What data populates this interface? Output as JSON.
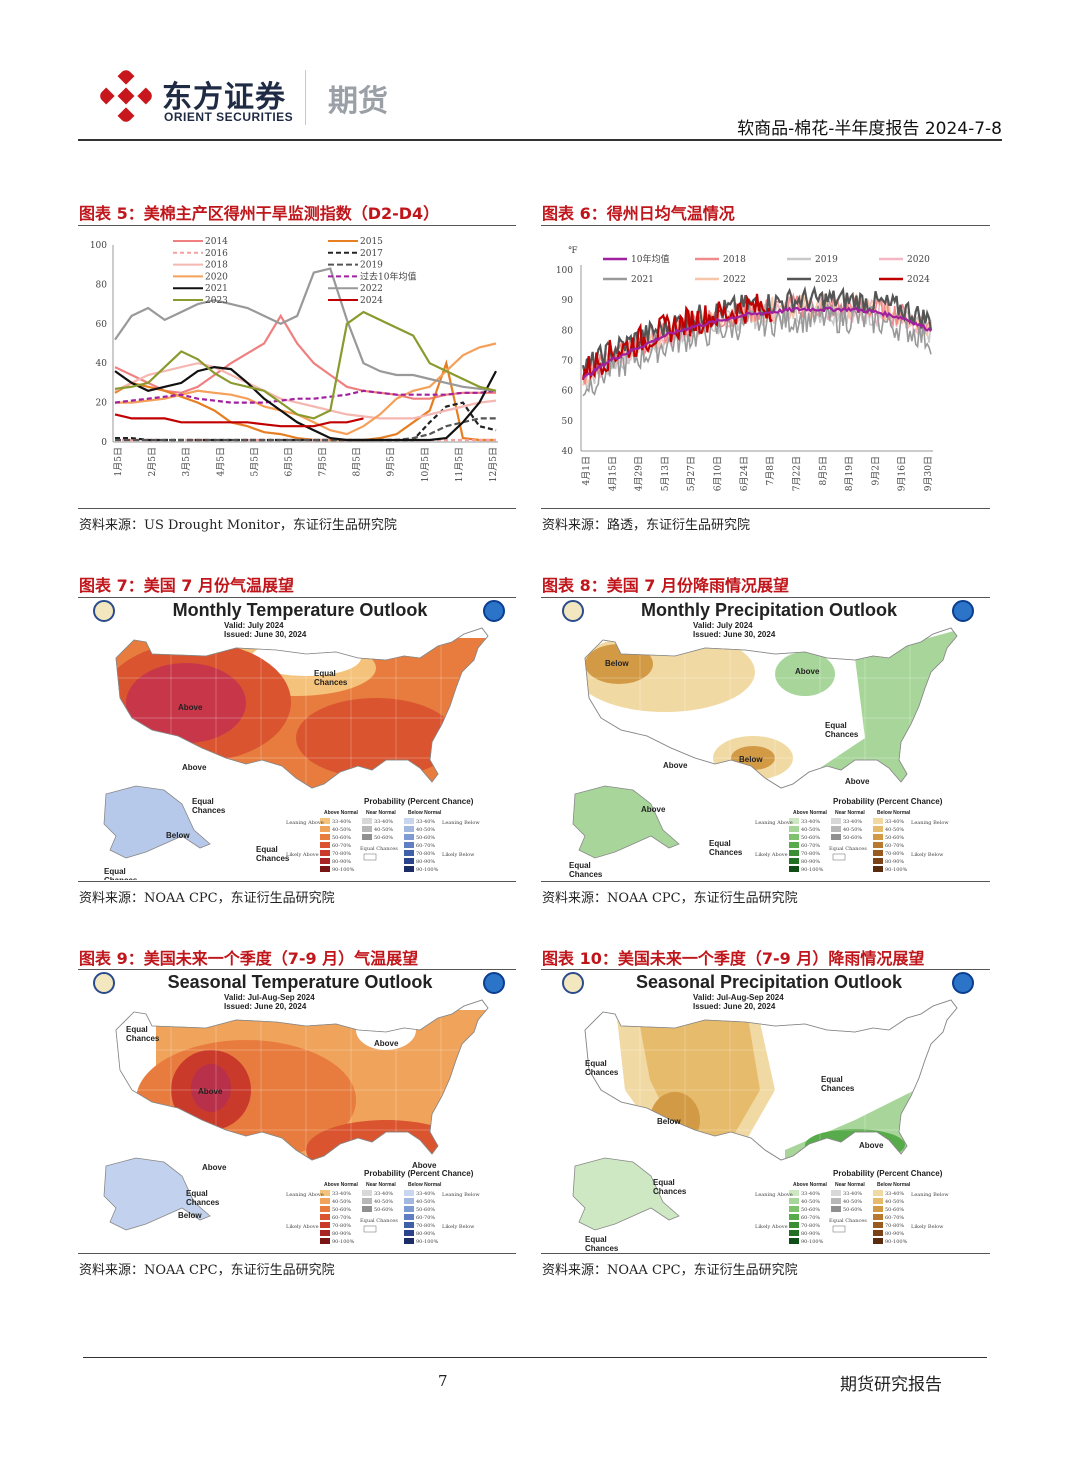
{
  "header": {
    "company_cn": "东方证券",
    "company_en": "ORIENT SECURITIES",
    "division": "期货",
    "report_info": "软商品-棉花-半年度报告 2024-7-8"
  },
  "figures": {
    "fig5": {
      "title": "图表 5：美棉主产区得州干旱监测指数（D2-D4）",
      "source": "资料来源：US Drought Monitor，东证衍生品研究院"
    },
    "fig6": {
      "title": "图表 6：得州日均气温情况",
      "source": "资料来源：路透，东证衍生品研究院"
    },
    "fig7": {
      "title": "图表 7：美国 7 月份气温展望",
      "source": "资料来源：NOAA CPC，东证衍生品研究院",
      "map_title": "Monthly Temperature Outlook",
      "valid": "Valid:  July 2024",
      "issued": "Issued:  June 30, 2024",
      "labels": [
        "Above",
        "Equal Chances",
        "Above",
        "Equal Chances",
        "Below",
        "Equal Chances",
        "Equal Chances"
      ]
    },
    "fig8": {
      "title": "图表 8：美国 7 月份降雨情况展望",
      "source": "资料来源：NOAA CPC，东证衍生品研究院",
      "map_title": "Monthly Precipitation Outlook",
      "valid": "Valid:  July 2024",
      "issued": "Issued:  June 30, 2024",
      "labels": [
        "Below",
        "Above",
        "Equal Chances",
        "Below",
        "Above",
        "Above",
        "Above",
        "Equal Chances",
        "Equal Chances"
      ]
    },
    "fig9": {
      "title": "图表 9：美国未来一个季度（7-9 月）气温展望",
      "source": "资料来源：NOAA CPC，东证衍生品研究院",
      "map_title": "Seasonal Temperature Outlook",
      "valid": "Valid:  Jul-Aug-Sep 2024",
      "issued": "Issued:  June 20, 2024",
      "labels": [
        "Equal Chances",
        "Above",
        "Above",
        "Above",
        "Above",
        "Equal Chances",
        "Below"
      ]
    },
    "fig10": {
      "title": "图表 10：美国未来一个季度（7-9 月）降雨情况展望",
      "source": "资料来源：NOAA CPC，东证衍生品研究院",
      "map_title": "Seasonal Precipitation Outlook",
      "valid": "Valid:  Jul-Aug-Sep 2024",
      "issued": "Issued:  June 20, 2024",
      "labels": [
        "Equal Chances",
        "Below",
        "Equal Chances",
        "Above",
        "Equal Chances",
        "Equal Chances"
      ]
    }
  },
  "map_legend": {
    "probability": "Probability (Percent Chance)",
    "leaning_above": "Leaning Above",
    "likely_above": "Likely Above",
    "leaning_below": "Leaning Below",
    "likely_below": "Likely Below",
    "above_normal": "Above Normal",
    "near_normal": "Near Normal",
    "below_normal": "Below Normal",
    "equal_chances": "Equal Chances",
    "bins": [
      "33-40%",
      "40-50%",
      "50-60%",
      "60-70%",
      "70-80%",
      "80-90%",
      "90-100%"
    ],
    "temp_above_colors": [
      "#f4c27a",
      "#f0a35a",
      "#e77c3e",
      "#d9542f",
      "#c93a2b",
      "#a82424",
      "#7a1515"
    ],
    "temp_below_colors": [
      "#c8d6ef",
      "#a2b8e0",
      "#7f9bd3",
      "#5f7fc2",
      "#3f5fa8",
      "#2a438a",
      "#1b2c66"
    ],
    "precip_above_colors": [
      "#cfe8c4",
      "#a8d69a",
      "#7fc26e",
      "#58ab4a",
      "#3a8e33",
      "#227024",
      "#0f4f17"
    ],
    "precip_below_colors": [
      "#f1d9a3",
      "#e6bb6c",
      "#d39a46",
      "#b8782d",
      "#985a1e",
      "#7a4216",
      "#5a2c0f"
    ]
  },
  "chart_data": [
    {
      "type": "line",
      "title": "图表 5：美棉主产区得州干旱监测指数（D2-D4）",
      "ylim": [
        0,
        100
      ],
      "yticks": [
        0,
        20,
        40,
        60,
        80,
        100
      ],
      "x_labels": [
        "1月5日",
        "2月5日",
        "3月5日",
        "4月5日",
        "5月5日",
        "6月5日",
        "7月5日",
        "8月5日",
        "9月5日",
        "10月5日",
        "11月5日",
        "12月5日"
      ],
      "legend": "top",
      "series": [
        {
          "name": "2014",
          "color": "#f08080",
          "dash": "",
          "values": [
            38,
            34,
            30,
            26,
            25,
            28,
            34,
            40,
            45,
            50,
            64,
            50,
            40,
            34,
            28,
            26,
            25,
            24,
            22,
            22,
            24,
            25,
            25,
            25
          ]
        },
        {
          "name": "2015",
          "color": "#e67e22",
          "dash": "",
          "values": [
            25,
            30,
            28,
            26,
            23,
            20,
            16,
            10,
            8,
            5,
            4,
            2,
            1,
            1,
            1,
            1,
            2,
            4,
            10,
            16,
            40,
            2,
            1,
            1
          ]
        },
        {
          "name": "2016",
          "color": "#f5a0a0",
          "dash": "4,3",
          "values": [
            1,
            1,
            1,
            1,
            1,
            1,
            1,
            1,
            1,
            1,
            1,
            1,
            1,
            1,
            1,
            1,
            1,
            1,
            1,
            1,
            1,
            1,
            1,
            1
          ]
        },
        {
          "name": "2017",
          "color": "#222222",
          "dash": "5,3",
          "values": [
            2,
            2,
            1,
            1,
            1,
            1,
            1,
            1,
            1,
            1,
            1,
            1,
            1,
            1,
            1,
            1,
            1,
            1,
            1,
            10,
            18,
            20,
            8,
            6
          ]
        },
        {
          "name": "2018",
          "color": "#f5b7b1",
          "dash": "",
          "values": [
            26,
            30,
            34,
            36,
            38,
            40,
            38,
            34,
            30,
            26,
            22,
            20,
            18,
            16,
            14,
            13,
            12,
            12,
            12,
            14,
            16,
            18,
            20,
            21
          ]
        },
        {
          "name": "2019",
          "color": "#555555",
          "dash": "6,3",
          "values": [
            1,
            1,
            1,
            1,
            1,
            1,
            1,
            1,
            1,
            1,
            1,
            1,
            1,
            1,
            1,
            1,
            1,
            1,
            2,
            4,
            8,
            10,
            12,
            12
          ]
        },
        {
          "name": "2020",
          "color": "#f5a05a",
          "dash": "",
          "values": [
            20,
            20,
            21,
            22,
            24,
            26,
            25,
            24,
            22,
            18,
            16,
            14,
            10,
            6,
            4,
            8,
            14,
            22,
            26,
            28,
            36,
            44,
            48,
            50
          ]
        },
        {
          "name": "过去10年均值",
          "color": "#a020a0",
          "dash": "5,3",
          "values": [
            20,
            21,
            22,
            23,
            24,
            22,
            21,
            20,
            20,
            20,
            21,
            22,
            22,
            23,
            24,
            26,
            25,
            24,
            24,
            24,
            24,
            25,
            25,
            26
          ]
        },
        {
          "name": "2021",
          "color": "#111111",
          "dash": "",
          "values": [
            36,
            30,
            26,
            28,
            30,
            36,
            38,
            37,
            30,
            22,
            16,
            10,
            6,
            2,
            1,
            1,
            1,
            1,
            1,
            1,
            2,
            10,
            20,
            36
          ]
        },
        {
          "name": "2022",
          "color": "#999999",
          "dash": "",
          "values": [
            52,
            64,
            68,
            62,
            66,
            70,
            72,
            70,
            68,
            64,
            60,
            64,
            86,
            88,
            62,
            40,
            36,
            34,
            34,
            32,
            30,
            28,
            27,
            26
          ]
        },
        {
          "name": "2023",
          "color": "#8a9a2e",
          "dash": "",
          "values": [
            27,
            28,
            30,
            38,
            46,
            42,
            35,
            30,
            28,
            26,
            20,
            14,
            12,
            16,
            60,
            66,
            62,
            58,
            54,
            40,
            36,
            32,
            28,
            26
          ]
        },
        {
          "name": "2024",
          "color": "#c00000",
          "dash": "",
          "values": [
            14,
            12,
            12,
            12,
            10,
            10,
            10,
            10,
            10,
            9,
            8,
            8,
            8,
            10,
            10,
            12
          ]
        }
      ]
    },
    {
      "type": "line",
      "title": "图表 6：得州日均气温情况",
      "ylabel": "℉",
      "ylim": [
        40,
        100
      ],
      "yticks": [
        40,
        50,
        60,
        70,
        80,
        90,
        100
      ],
      "x_labels": [
        "4月1日",
        "4月15日",
        "4月29日",
        "5月13日",
        "5月27日",
        "6月10日",
        "6月24日",
        "7月8日",
        "7月22日",
        "8月5日",
        "8月19日",
        "9月2日",
        "9月16日",
        "9月30日"
      ],
      "legend": "top",
      "series": [
        {
          "name": "10年均值",
          "color": "#a020a0"
        },
        {
          "name": "2018",
          "color": "#f08a8a"
        },
        {
          "name": "2019",
          "color": "#c8c8c8"
        },
        {
          "name": "2020",
          "color": "#f5b7c5"
        },
        {
          "name": "2021",
          "color": "#999999"
        },
        {
          "name": "2022",
          "color": "#f7c6a8"
        },
        {
          "name": "2023",
          "color": "#555555"
        },
        {
          "name": "2024",
          "color": "#c00000"
        }
      ],
      "mean_curve": [
        64,
        70,
        74,
        78,
        81,
        83,
        85,
        86,
        87,
        87,
        87,
        86,
        84,
        80
      ]
    }
  ],
  "footer": {
    "page": "7",
    "label": "期货研究报告"
  }
}
